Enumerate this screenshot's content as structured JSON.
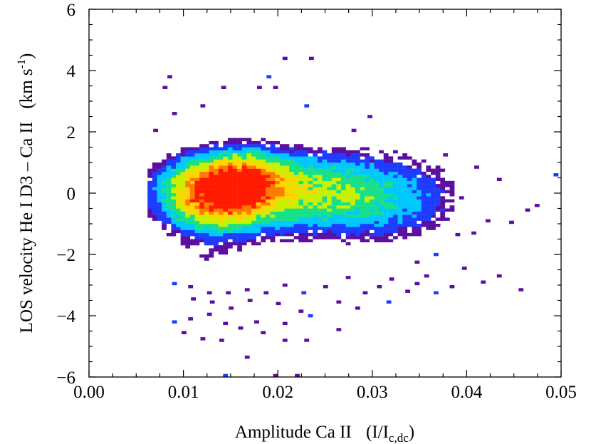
{
  "chart_data": {
    "type": "heatmap",
    "title": "",
    "xlabel": {
      "main": "Amplitude Ca II",
      "unit_open": "(I/I",
      "unit_sub": "c,dc",
      "unit_close": ")"
    },
    "ylabel": {
      "main": "LOS velocity He I D3 – Ca II",
      "unit_open": "(km s",
      "unit_sup": "-1",
      "unit_close": ")"
    },
    "xlim": [
      0.0,
      0.05
    ],
    "ylim": [
      -6,
      6
    ],
    "x_ticks": [
      "0.00",
      "0.01",
      "0.02",
      "0.03",
      "0.04",
      "0.05"
    ],
    "y_ticks": [
      "6",
      "4",
      "2",
      "0",
      "-2",
      "-4",
      "-6"
    ],
    "grid": false,
    "colormap": [
      "#5b0fa0",
      "#1e3cff",
      "#00c8ff",
      "#18e08a",
      "#c8f000",
      "#ffd400",
      "#ff7a00",
      "#ff1a00"
    ],
    "density_core": {
      "x_center": 0.0135,
      "y_center": 0.0,
      "tail_to_x": 0.03,
      "velocity_range": [
        -1.2,
        1.6
      ]
    },
    "outlier_points": [
      [
        0.0205,
        4.35
      ],
      [
        0.0233,
        4.35
      ],
      [
        0.0083,
        3.75
      ],
      [
        0.0188,
        3.75
      ],
      [
        0.0078,
        3.4
      ],
      [
        0.014,
        3.4
      ],
      [
        0.0178,
        3.4
      ],
      [
        0.0195,
        3.4
      ],
      [
        0.0088,
        2.55
      ],
      [
        0.0118,
        2.8
      ],
      [
        0.0228,
        2.8
      ],
      [
        0.0295,
        2.45
      ],
      [
        0.0068,
        2.0
      ],
      [
        0.0278,
        2.0
      ],
      [
        0.0375,
        1.2
      ],
      [
        0.0408,
        0.8
      ],
      [
        0.0432,
        0.4
      ],
      [
        0.0492,
        0.55
      ],
      [
        0.0462,
        -0.6
      ],
      [
        0.0472,
        -0.45
      ],
      [
        0.0445,
        -1.0
      ],
      [
        0.042,
        -0.95
      ],
      [
        0.0388,
        -1.4
      ],
      [
        0.0405,
        -1.35
      ],
      [
        0.0365,
        -2.05
      ],
      [
        0.0345,
        -2.3
      ],
      [
        0.0395,
        -2.5
      ],
      [
        0.0432,
        -2.75
      ],
      [
        0.0382,
        -3.1
      ],
      [
        0.0415,
        -2.95
      ],
      [
        0.0455,
        -3.2
      ],
      [
        0.0365,
        -3.3
      ],
      [
        0.0345,
        -3.0
      ],
      [
        0.0318,
        -2.85
      ],
      [
        0.0305,
        -3.1
      ],
      [
        0.029,
        -3.3
      ],
      [
        0.0272,
        -2.8
      ],
      [
        0.0248,
        -3.1
      ],
      [
        0.0225,
        -3.3
      ],
      [
        0.0205,
        -3.05
      ],
      [
        0.0185,
        -3.3
      ],
      [
        0.0165,
        -3.2
      ],
      [
        0.0145,
        -3.3
      ],
      [
        0.0125,
        -3.3
      ],
      [
        0.0105,
        -3.1
      ],
      [
        0.0088,
        -3.0
      ],
      [
        0.0108,
        -3.5
      ],
      [
        0.0128,
        -3.6
      ],
      [
        0.0148,
        -3.8
      ],
      [
        0.0168,
        -3.55
      ],
      [
        0.0198,
        -3.65
      ],
      [
        0.0222,
        -3.9
      ],
      [
        0.0088,
        -4.25
      ],
      [
        0.0105,
        -4.15
      ],
      [
        0.0125,
        -4.0
      ],
      [
        0.0142,
        -4.3
      ],
      [
        0.0158,
        -4.45
      ],
      [
        0.0175,
        -4.25
      ],
      [
        0.0205,
        -4.3
      ],
      [
        0.0232,
        -4.05
      ],
      [
        0.0262,
        -4.5
      ],
      [
        0.0182,
        -4.6
      ],
      [
        0.0228,
        -4.85
      ],
      [
        0.0205,
        -4.85
      ],
      [
        0.0138,
        -4.85
      ],
      [
        0.0165,
        -5.4
      ],
      [
        0.0142,
        -6.0
      ],
      [
        0.0195,
        -6.0
      ],
      [
        0.0218,
        -6.0
      ],
      [
        0.0098,
        -4.6
      ],
      [
        0.0118,
        -4.8
      ],
      [
        0.0335,
        -3.25
      ],
      [
        0.0355,
        -2.75
      ],
      [
        0.0315,
        -3.6
      ],
      [
        0.0282,
        -3.8
      ],
      [
        0.0262,
        -3.6
      ]
    ]
  }
}
